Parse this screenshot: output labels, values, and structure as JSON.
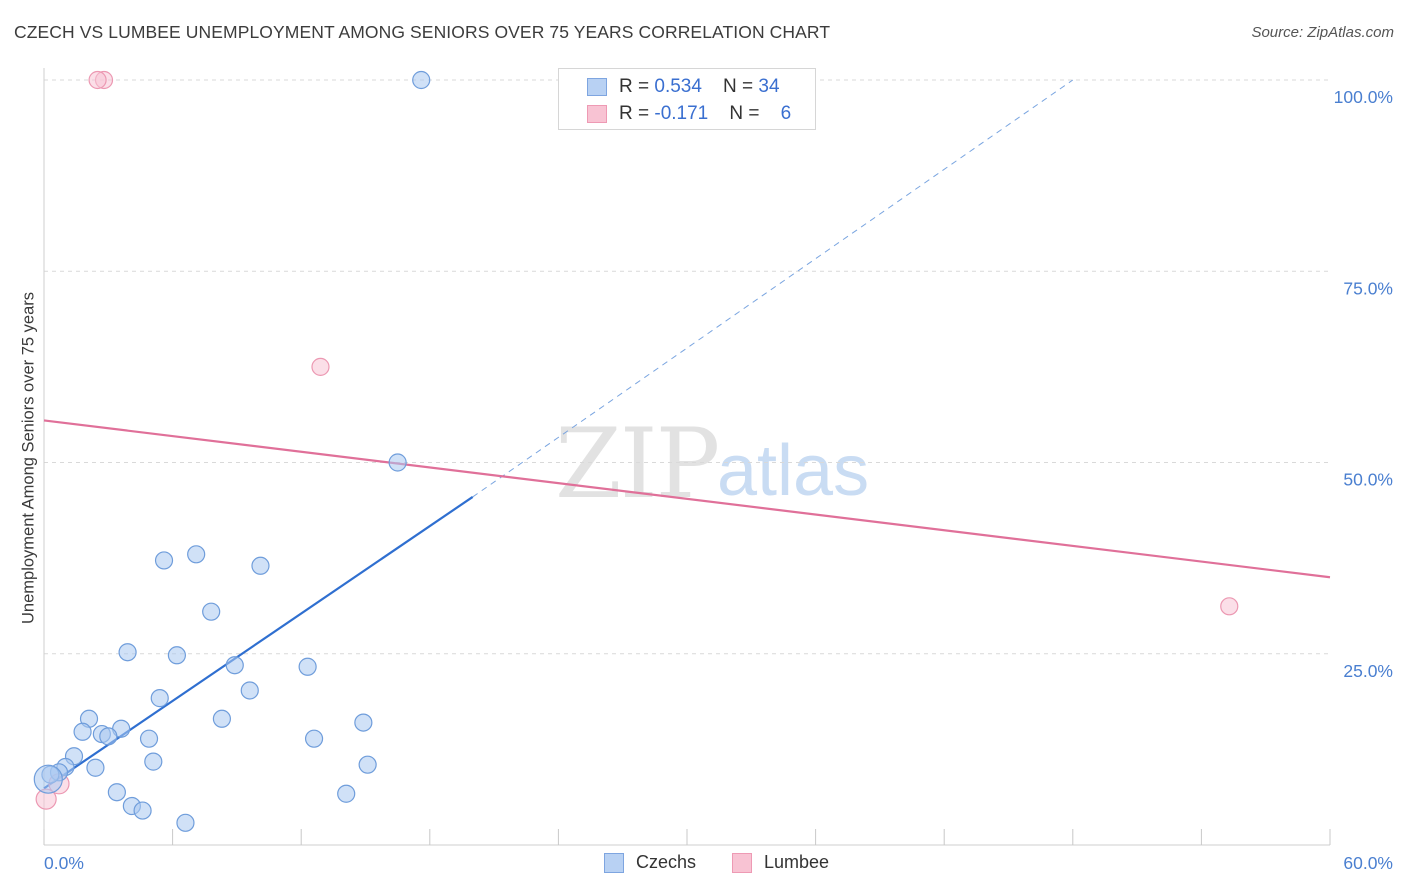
{
  "header": {
    "title": "CZECH VS LUMBEE UNEMPLOYMENT AMONG SENIORS OVER 75 YEARS CORRELATION CHART",
    "source": "Source: ZipAtlas.com"
  },
  "watermark": {
    "zip": "ZIP",
    "atlas": "atlas"
  },
  "legend": {
    "rows": [
      {
        "r_label": "R = ",
        "r_value": "0.534",
        "n_label": "N = ",
        "n_value": "34",
        "color": "#b8d1f3",
        "border": "#7ea5e0"
      },
      {
        "r_label": "R = ",
        "r_value": "-0.171",
        "n_label": "N = ",
        "n_value": "6",
        "color": "#f8c3d3",
        "border": "#ee9ab4"
      }
    ]
  },
  "bottom_legend": {
    "czechs": "Czechs",
    "lumbee": "Lumbee"
  },
  "chart_data": {
    "type": "scatter",
    "title": "CZECH VS LUMBEE UNEMPLOYMENT AMONG SENIORS OVER 75 YEARS CORRELATION CHART",
    "ylabel": "Unemployment Among Seniors over 75 years",
    "xlabel": "",
    "xlim": [
      0,
      60
    ],
    "ylim": [
      0,
      100
    ],
    "x_tick_labels": [
      "0.0%",
      "60.0%"
    ],
    "y_ticks": [
      25,
      50,
      75,
      100
    ],
    "y_tick_labels": [
      "25.0%",
      "50.0%",
      "75.0%",
      "100.0%"
    ],
    "grid": "horizontal dashed",
    "legend_placement": "top-center",
    "series": [
      {
        "name": "Czechs",
        "color": "#a9c8f0",
        "stroke": "#6f9ddb",
        "points": [
          [
            17.6,
            100
          ],
          [
            16.5,
            50
          ],
          [
            7.1,
            38
          ],
          [
            5.6,
            37.2
          ],
          [
            10.1,
            36.5
          ],
          [
            7.8,
            30.5
          ],
          [
            3.9,
            25.2
          ],
          [
            6.2,
            24.8
          ],
          [
            8.9,
            23.5
          ],
          [
            12.3,
            23.3
          ],
          [
            5.4,
            19.2
          ],
          [
            9.6,
            20.2
          ],
          [
            2.1,
            16.5
          ],
          [
            8.3,
            16.5
          ],
          [
            14.9,
            16
          ],
          [
            3.6,
            15.2
          ],
          [
            1.8,
            14.8
          ],
          [
            2.7,
            14.5
          ],
          [
            3.0,
            14.2
          ],
          [
            4.9,
            13.9
          ],
          [
            12.6,
            13.9
          ],
          [
            1.4,
            11.6
          ],
          [
            5.1,
            10.9
          ],
          [
            15.1,
            10.5
          ],
          [
            2.4,
            10.1
          ],
          [
            1.0,
            10.2
          ],
          [
            0.7,
            9.5
          ],
          [
            0.3,
            9.2
          ],
          [
            0.2,
            8.6
          ],
          [
            3.4,
            6.9
          ],
          [
            14.1,
            6.7
          ],
          [
            4.1,
            5.1
          ],
          [
            4.6,
            4.5
          ],
          [
            6.6,
            2.9
          ]
        ]
      },
      {
        "name": "Lumbee",
        "color": "#f8c5d5",
        "stroke": "#ec98b2",
        "points": [
          [
            2.8,
            100
          ],
          [
            2.5,
            100
          ],
          [
            12.9,
            62.5
          ],
          [
            55.3,
            31.2
          ],
          [
            0.7,
            8.0
          ],
          [
            0.1,
            6.0
          ]
        ]
      }
    ],
    "trendlines": [
      {
        "series": "Czechs",
        "solid": [
          [
            0,
            7.4
          ],
          [
            20,
            45.5
          ]
        ],
        "dashed": [
          [
            20,
            45.5
          ],
          [
            48,
            100
          ]
        ],
        "color": "#2f6fd0"
      },
      {
        "series": "Lumbee",
        "solid": [
          [
            0,
            55.5
          ],
          [
            60,
            35.0
          ]
        ],
        "color": "#e07099"
      }
    ]
  }
}
